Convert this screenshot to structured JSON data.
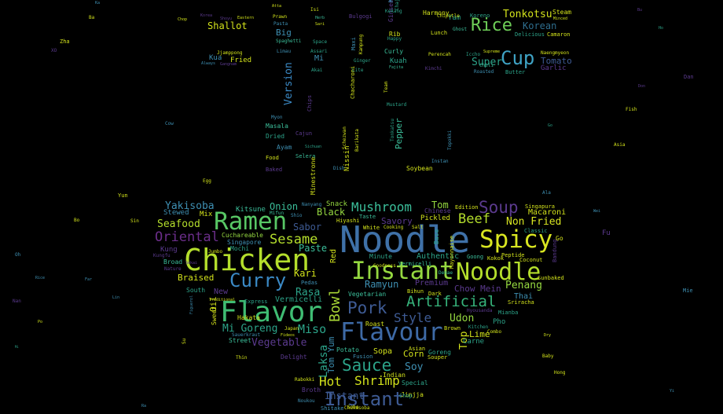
{
  "words": [
    {
      "text": "Noodle",
      "color": "#3f71a8"
    },
    {
      "text": "Chicken",
      "color": "#b4de2c"
    },
    {
      "text": "Flavor",
      "color": "#3fbc73"
    },
    {
      "text": "Instant",
      "color": "#95d840"
    },
    {
      "text": "Noodle",
      "color": "#b4de2c"
    },
    {
      "text": "Flavour",
      "color": "#3e6aa6"
    },
    {
      "text": "Spicy",
      "color": "#d9e621"
    },
    {
      "text": "Ramen",
      "color": "#58c765"
    },
    {
      "text": "Instant",
      "color": "#3e5b94"
    },
    {
      "text": "Curry",
      "color": "#3b8ac6"
    },
    {
      "text": "Rice",
      "color": "#6ece58"
    },
    {
      "text": "Cup",
      "color": "#3fa3c5"
    },
    {
      "text": "Pork",
      "color": "#3e5b94"
    },
    {
      "text": "Sauce",
      "color": "#2ca389"
    },
    {
      "text": "Soup",
      "color": "#5b3a8e"
    },
    {
      "text": "Artificial",
      "color": "#36b37b"
    },
    {
      "text": "Oriental",
      "color": "#6b2e8a"
    },
    {
      "text": "Sesame",
      "color": "#b4de2c"
    },
    {
      "text": "Beef",
      "color": "#b4de2c"
    },
    {
      "text": "Mushroom",
      "color": "#3bbe9a"
    },
    {
      "text": "Bowl",
      "color": "#a8d636"
    },
    {
      "text": "Shrimp",
      "color": "#d2e21b"
    },
    {
      "text": "Hot",
      "color": "#d2e21b"
    },
    {
      "text": "Style",
      "color": "#3e5b94"
    },
    {
      "text": "Seafood",
      "color": "#b4de2c"
    },
    {
      "text": "Yakisoba",
      "color": "#3e8fb2"
    },
    {
      "text": "Miso",
      "color": "#2ca389"
    },
    {
      "text": "Onion",
      "color": "#3bbe9a"
    },
    {
      "text": "Vegetable",
      "color": "#5b3a8e"
    },
    {
      "text": "Mi Goreng",
      "color": "#2ca389"
    },
    {
      "text": "Tonkotsu",
      "color": "#d2e21b"
    },
    {
      "text": "Korean",
      "color": "#2e6e8e"
    },
    {
      "text": "Tom",
      "color": "#95d840"
    },
    {
      "text": "Ramyun",
      "color": "#3e8fb2"
    },
    {
      "text": "Soy",
      "color": "#3e8fb2"
    },
    {
      "text": "Udon",
      "color": "#95d840"
    },
    {
      "text": "Penang",
      "color": "#95d840"
    },
    {
      "text": "Laksa",
      "color": "#2ca389"
    },
    {
      "text": "Non Fried",
      "color": "#d9e621"
    },
    {
      "text": "Sabor",
      "color": "#3e5b94"
    },
    {
      "text": "Rasa",
      "color": "#2ca389"
    },
    {
      "text": "Super",
      "color": "#2ca389"
    },
    {
      "text": "Black",
      "color": "#95d840"
    },
    {
      "text": "Version",
      "color": "#3b8ac6"
    },
    {
      "text": "Tomato",
      "color": "#3e5b94"
    },
    {
      "text": "Chow Mein",
      "color": "#5b3a8e"
    },
    {
      "text": "Shallot",
      "color": "#d2e21b"
    },
    {
      "text": "Braised",
      "color": "#d2e21b"
    },
    {
      "text": "Pepper",
      "color": "#3bbe9a"
    },
    {
      "text": "Kari",
      "color": "#d2e21b"
    },
    {
      "text": "Paste",
      "color": "#3bbe9a"
    },
    {
      "text": "Instant",
      "color": "#3e5b94"
    },
    {
      "text": "Big",
      "color": "#3e8fb2"
    },
    {
      "text": "Lime",
      "color": "#d2e21b"
    },
    {
      "text": "Top",
      "color": "#d2e21b"
    },
    {
      "text": "Macaroni",
      "color": "#d2e21b"
    },
    {
      "text": "Savory",
      "color": "#5b3a8e"
    },
    {
      "text": "Premium",
      "color": "#5b3a8e"
    },
    {
      "text": "Authentic",
      "color": "#2ca389"
    },
    {
      "text": "New",
      "color": "#5b3a8e"
    },
    {
      "text": "Thai",
      "color": "#3e8fb2"
    },
    {
      "text": "Corn",
      "color": "#d2e21b"
    },
    {
      "text": "Vermicelli",
      "color": "#2ca389"
    },
    {
      "text": "Mi",
      "color": "#3e8fb2"
    },
    {
      "text": "Oil",
      "color": "#d2e21b"
    },
    {
      "text": "Garlic",
      "color": "#5b3a8e"
    },
    {
      "text": "Yam",
      "color": "#2ca389"
    },
    {
      "text": "Harmony",
      "color": "#d2e21b"
    },
    {
      "text": "Steam",
      "color": "#d2e21b"
    },
    {
      "text": "Kitsune",
      "color": "#3bbe9a"
    },
    {
      "text": "Stewed",
      "color": "#3e8fb2"
    },
    {
      "text": "Mix",
      "color": "#d2e21b"
    },
    {
      "text": "Snack",
      "color": "#95d840"
    },
    {
      "text": "Tom Yum",
      "color": "#3e8fb2"
    },
    {
      "text": "Sopa",
      "color": "#d2e21b"
    },
    {
      "text": "Carne",
      "color": "#2ca389"
    },
    {
      "text": "Pho",
      "color": "#2ca389"
    },
    {
      "text": "Chinese",
      "color": "#5b3a8e"
    },
    {
      "text": "Pickled",
      "color": "#d2e21b"
    },
    {
      "text": "Minute",
      "color": "#2ca389"
    },
    {
      "text": "Fried",
      "color": "#d2e21b"
    },
    {
      "text": "Kua",
      "color": "#3e8fb2"
    },
    {
      "text": "Curly",
      "color": "#3bbe9a"
    },
    {
      "text": "Rib",
      "color": "#d2e21b"
    },
    {
      "text": "Kuah",
      "color": "#2ca389"
    },
    {
      "text": "Kung",
      "color": "#5b3a8e"
    },
    {
      "text": "Singapore",
      "color": "#3e8fb2"
    },
    {
      "text": "Cuchareable",
      "color": "#95d840"
    },
    {
      "text": "Mochi",
      "color": "#2ca389"
    },
    {
      "text": "Hakata",
      "color": "#d2e21b"
    },
    {
      "text": "Street",
      "color": "#3bbe9a"
    },
    {
      "text": "Soybean",
      "color": "#d2e21b"
    },
    {
      "text": "Dried",
      "color": "#2ca389"
    },
    {
      "text": "Ayam",
      "color": "#3e8fb2"
    },
    {
      "text": "Masala",
      "color": "#3bbe9a"
    },
    {
      "text": "Food",
      "color": "#d2e21b"
    },
    {
      "text": "Baked",
      "color": "#5b3a8e"
    },
    {
      "text": "Selera",
      "color": "#3bbe9a"
    },
    {
      "text": "Nissin",
      "color": "#d2e21b"
    },
    {
      "text": "Minestrone",
      "color": "#d2e21b"
    },
    {
      "text": "Express",
      "color": "#2ca389"
    },
    {
      "text": "Sweet",
      "color": "#d2e21b"
    },
    {
      "text": "South",
      "color": "#2ca389"
    },
    {
      "text": "Broad",
      "color": "#3bbe9a"
    },
    {
      "text": "Potato",
      "color": "#3bbe9a"
    },
    {
      "text": "Fusion",
      "color": "#3e8fb2"
    },
    {
      "text": "Indian",
      "color": "#d2e21b"
    },
    {
      "text": "Special",
      "color": "#2ca389"
    },
    {
      "text": "Jinjja",
      "color": "#d2e21b"
    },
    {
      "text": "Broth",
      "color": "#5b3a8e"
    },
    {
      "text": "Sobe",
      "color": "#d2e21b"
    },
    {
      "text": "Shitake",
      "color": "#3e8fb2"
    },
    {
      "text": "Chukasoba",
      "color": "#d2e21b"
    },
    {
      "text": "Noukou",
      "color": "#3e8fb2"
    },
    {
      "text": "Rabokki",
      "color": "#d2e21b"
    },
    {
      "text": "Sauerkraut",
      "color": "#3e8fb2"
    },
    {
      "text": "Delight",
      "color": "#5b3a8e"
    },
    {
      "text": "Roast",
      "color": "#d2e21b"
    },
    {
      "text": "Vegetarian",
      "color": "#3bbe9a"
    },
    {
      "text": "Bihun",
      "color": "#d2e21b"
    },
    {
      "text": "Coconut",
      "color": "#d2e21b"
    },
    {
      "text": "Sriracha",
      "color": "#d2e21b"
    },
    {
      "text": "Mianba",
      "color": "#2ca389"
    },
    {
      "text": "Hiyashi",
      "color": "#d2e21b"
    },
    {
      "text": "Pedas",
      "color": "#3e8fb2"
    },
    {
      "text": "Goong",
      "color": "#3bbe9a"
    },
    {
      "text": "Singapura",
      "color": "#d2e21b"
    },
    {
      "text": "Edition",
      "color": "#d2e21b"
    },
    {
      "text": "Peptide",
      "color": "#d2e21b"
    },
    {
      "text": "Kokok",
      "color": "#d2e21b"
    },
    {
      "text": "Bandung",
      "color": "#5b3a8e"
    },
    {
      "text": "Go",
      "color": "#d2e21b"
    },
    {
      "text": "Classic",
      "color": "#2ca389"
    },
    {
      "text": "Sunbaked",
      "color": "#d2e21b"
    },
    {
      "text": "Nanyang",
      "color": "#3e8fb2"
    },
    {
      "text": "Taste",
      "color": "#3bbe9a"
    },
    {
      "text": "White",
      "color": "#d2e21b"
    },
    {
      "text": "Cooking",
      "color": "#d2e21b"
    },
    {
      "text": "Salt",
      "color": "#d2e21b"
    },
    {
      "text": "Shio",
      "color": "#3e8fb2"
    },
    {
      "text": "Mifun",
      "color": "#3bbe9a"
    },
    {
      "text": "Red",
      "color": "#d2e21b"
    },
    {
      "text": "Base",
      "color": "#2ca389"
    },
    {
      "text": "Mayonnaise",
      "color": "#d2e21b"
    },
    {
      "text": "Instan",
      "color": "#3e8fb2"
    },
    {
      "text": "Ghost",
      "color": "#3bbe9a"
    },
    {
      "text": "Lunch",
      "color": "#d2e21b"
    },
    {
      "text": "Pasta",
      "color": "#3e8fb2"
    },
    {
      "text": "Herb",
      "color": "#3bbe9a"
    },
    {
      "text": "Sari",
      "color": "#d2e21b"
    },
    {
      "text": "Space",
      "color": "#2ca389"
    },
    {
      "text": "Spaghetti",
      "color": "#3bbe9a"
    },
    {
      "text": "Limau",
      "color": "#3e8fb2"
    },
    {
      "text": "Assari",
      "color": "#2ca389"
    },
    {
      "text": "Akai",
      "color": "#2ca389"
    },
    {
      "text": "Ginger",
      "color": "#2ca389"
    },
    {
      "text": "Lite",
      "color": "#2ca389"
    },
    {
      "text": "Fajita",
      "color": "#3bbe9a"
    },
    {
      "text": "Happy",
      "color": "#2ca389"
    },
    {
      "text": "Perencah",
      "color": "#d2e21b"
    },
    {
      "text": "Iccho",
      "color": "#2ca389"
    },
    {
      "text": "Supreme",
      "color": "#d2e21b"
    },
    {
      "text": "Koreno",
      "color": "#2ca389"
    },
    {
      "text": "Delicious",
      "color": "#2ca389"
    },
    {
      "text": "Camaron",
      "color": "#d2e21b"
    },
    {
      "text": "Minced",
      "color": "#d2e21b"
    },
    {
      "text": "Naengmyeon",
      "color": "#d2e21b"
    },
    {
      "text": "Butter",
      "color": "#2ca389"
    },
    {
      "text": "Roasted",
      "color": "#3e8fb2"
    },
    {
      "text": "Chili",
      "color": "#3bbe9a"
    },
    {
      "text": "Jjamppong",
      "color": "#d2e21b"
    },
    {
      "text": "Always",
      "color": "#3e8fb2"
    },
    {
      "text": "Gangnam",
      "color": "#5b3a8e"
    },
    {
      "text": "Myon",
      "color": "#3e8fb2"
    },
    {
      "text": "Cajun",
      "color": "#5b3a8e"
    },
    {
      "text": "Sichuan",
      "color": "#2ca389"
    },
    {
      "text": "Schezwan",
      "color": "#d2e21b"
    },
    {
      "text": "Barikata",
      "color": "#d2e21b"
    },
    {
      "text": "Chacharoni",
      "color": "#d2e21b"
    },
    {
      "text": "Team",
      "color": "#d2e21b"
    },
    {
      "text": "Mustard",
      "color": "#2ca389"
    },
    {
      "text": "Tonkatsu",
      "color": "#2ca389"
    },
    {
      "text": "Topokki",
      "color": "#3e8fb2"
    },
    {
      "text": "Chips",
      "color": "#5b3a8e"
    },
    {
      "text": "Maxi",
      "color": "#3e8fb2"
    },
    {
      "text": "Kampung",
      "color": "#d2e21b"
    },
    {
      "text": "Chipotle",
      "color": "#d2e21b"
    },
    {
      "text": "Kimchi",
      "color": "#5b3a8e"
    },
    {
      "text": "Shoyu",
      "color": "#5b3a8e"
    },
    {
      "text": "Eastern",
      "color": "#d2e21b"
    },
    {
      "text": "Korea",
      "color": "#5b3a8e"
    },
    {
      "text": "Chop",
      "color": "#d2e21b"
    },
    {
      "text": "Prawn",
      "color": "#d2e21b"
    },
    {
      "text": "Isi",
      "color": "#d2e21b"
    },
    {
      "text": "Atta",
      "color": "#d2e21b"
    },
    {
      "text": "Bulgogi",
      "color": "#5b3a8e"
    },
    {
      "text": "Ginseng",
      "color": "#5b3a8e"
    },
    {
      "text": "Kungfu",
      "color": "#5b3a8e"
    },
    {
      "text": "Nature",
      "color": "#5b3a8e"
    },
    {
      "text": "Traditional",
      "color": "#d2e21b"
    },
    {
      "text": "Jumbo",
      "color": "#d2e21b"
    },
    {
      "text": "Figuerol",
      "color": "#3e8fb2"
    },
    {
      "text": "Sekai",
      "color": "#5b3a8e"
    },
    {
      "text": "Goodness",
      "color": "#d2e21b"
    },
    {
      "text": "Vermicelli",
      "color": "#3bbe9a"
    },
    {
      "text": "Combo",
      "color": "#d2e21b"
    },
    {
      "text": "Kitchen",
      "color": "#2ca389"
    },
    {
      "text": "Dark",
      "color": "#d2e21b"
    },
    {
      "text": "Brown",
      "color": "#d2e21b"
    },
    {
      "text": "Denae",
      "color": "#3bbe9a"
    },
    {
      "text": "Hyousanda",
      "color": "#5b3a8e"
    },
    {
      "text": "Goreng",
      "color": "#2ca389"
    },
    {
      "text": "Souper",
      "color": "#d2e21b"
    },
    {
      "text": "Asian",
      "color": "#d2e21b"
    },
    {
      "text": "Chop",
      "color": "#2ca389"
    },
    {
      "text": "Japan",
      "color": "#d2e21b"
    },
    {
      "text": "Fideos",
      "color": "#d2e21b"
    },
    {
      "text": "Thin",
      "color": "#d2e21b"
    },
    {
      "text": "Dry",
      "color": "#d2e21b"
    },
    {
      "text": "Baby",
      "color": "#d2e21b"
    },
    {
      "text": "Hong",
      "color": "#d2e21b"
    },
    {
      "text": "Fu",
      "color": "#5b3a8e"
    },
    {
      "text": "Mie",
      "color": "#3e8fb2"
    },
    {
      "text": "Yun",
      "color": "#d2e21b"
    },
    {
      "text": "Zha",
      "color": "#d2e21b"
    },
    {
      "text": "XO",
      "color": "#5b3a8e"
    },
    {
      "text": "Bo",
      "color": "#d2e21b"
    },
    {
      "text": "Oh",
      "color": "#3e8fb2"
    },
    {
      "text": "Nan",
      "color": "#5b3a8e"
    },
    {
      "text": "Ala",
      "color": "#3e8fb2"
    },
    {
      "text": "Fish",
      "color": "#d2e21b"
    },
    {
      "text": "Asia",
      "color": "#d2e21b"
    },
    {
      "text": "Egg",
      "color": "#d2e21b"
    },
    {
      "text": "Cow",
      "color": "#3e8fb2"
    },
    {
      "text": "Far",
      "color": "#3e8fb2"
    },
    {
      "text": "Rice",
      "color": "#3e8fb2"
    },
    {
      "text": "Dish",
      "color": "#3e8fb2"
    },
    {
      "text": "Kingcook",
      "color": "#3e8fb2"
    },
    {
      "text": "Chajang",
      "color": "#2ca389"
    },
    {
      "text": "Kekang",
      "color": "#2ca389"
    },
    {
      "text": "Dan",
      "color": "#5b3a8e"
    },
    {
      "text": "Don",
      "color": "#5b3a8e"
    },
    {
      "text": "Bu",
      "color": "#5b3a8e"
    },
    {
      "text": "Ba",
      "color": "#d2e21b"
    },
    {
      "text": "Ho",
      "color": "#2ca389"
    },
    {
      "text": "Sin",
      "color": "#d2e21b"
    },
    {
      "text": "Wei",
      "color": "#3e8fb2"
    },
    {
      "text": "Lin",
      "color": "#3e8fb2"
    },
    {
      "text": "Po",
      "color": "#d2e21b"
    },
    {
      "text": "Mi",
      "color": "#2ca389"
    },
    {
      "text": "Yi",
      "color": "#3e8fb2"
    },
    {
      "text": "Ra",
      "color": "#3e8fb2"
    },
    {
      "text": "Su",
      "color": "#d2e21b"
    },
    {
      "text": "Go",
      "color": "#2ca389"
    },
    {
      "text": "Ka",
      "color": "#3e8fb2"
    }
  ]
}
